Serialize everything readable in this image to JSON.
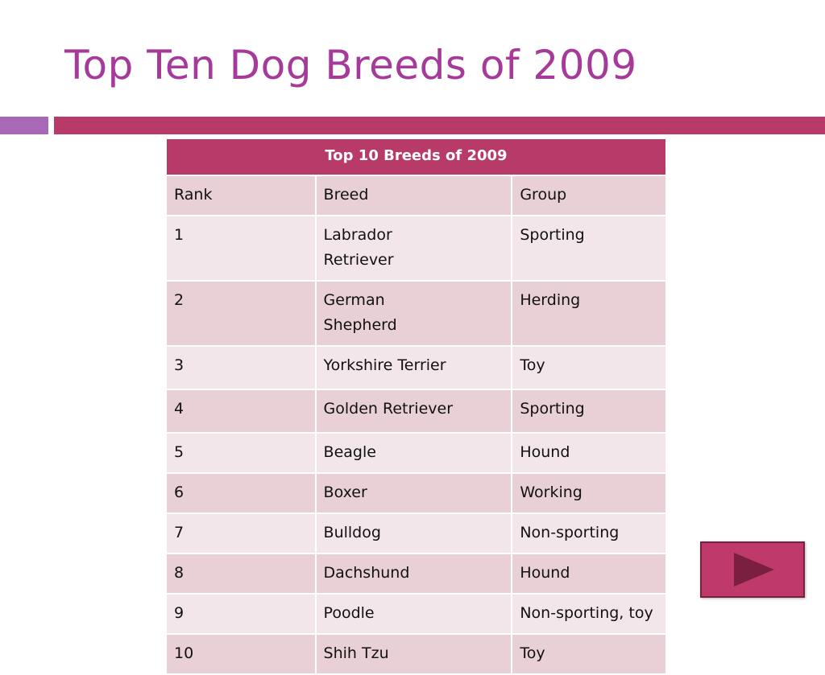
{
  "slide": {
    "title": "Top Ten Dog Breeds of 2009"
  },
  "table": {
    "caption": "Top 10 Breeds of 2009",
    "headers": [
      "Rank",
      "Breed",
      "Group"
    ],
    "rows": [
      {
        "rank": "1",
        "breed": "Labrador Retriever",
        "group": "Sporting"
      },
      {
        "rank": "2",
        "breed": "German Shepherd",
        "group": "Herding"
      },
      {
        "rank": "3",
        "breed": "Yorkshire Terrier",
        "group": "Toy"
      },
      {
        "rank": "4",
        "breed": "Golden Retriever",
        "group": "Sporting"
      },
      {
        "rank": "5",
        "breed": "Beagle",
        "group": "Hound"
      },
      {
        "rank": "6",
        "breed": "Boxer",
        "group": "Working"
      },
      {
        "rank": "7",
        "breed": "Bulldog",
        "group": "Non-sporting"
      },
      {
        "rank": "8",
        "breed": "Dachshund",
        "group": "Hound"
      },
      {
        "rank": "9",
        "breed": "Poodle",
        "group": "Non-sporting, toy"
      },
      {
        "rank": "10",
        "breed": "Shih Tzu",
        "group": "Toy"
      }
    ]
  },
  "colors": {
    "title": "#a53a9a",
    "accent_bar_left": "#a868b8",
    "accent_bar_right": "#b83a68",
    "table_header": "#b83a68",
    "row_dark": "#e8d0d6",
    "row_light": "#f2e6ea",
    "nav_button": "#bf3a6a",
    "nav_arrow": "#7a1f40"
  },
  "nav": {
    "icon": "play-arrow-icon"
  }
}
